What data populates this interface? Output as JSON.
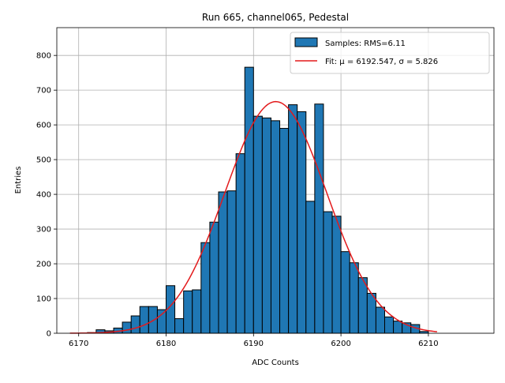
{
  "chart_data": {
    "type": "bar",
    "title": "Run 665, channel065, Pedestal",
    "xlabel": "ADC Counts",
    "ylabel": "Entries",
    "xlim": [
      6167.5,
      6217.5
    ],
    "ylim": [
      0,
      880
    ],
    "grid": true,
    "legend_position": "top-right",
    "x_ticks": [
      6170,
      6180,
      6190,
      6200,
      6210
    ],
    "y_ticks": [
      0,
      100,
      200,
      300,
      400,
      500,
      600,
      700,
      800
    ],
    "histogram": {
      "name": "Samples: RMS=6.11",
      "color": "#1f77b4",
      "edgecolor": "#000000",
      "bin_start": 6171,
      "bin_width": 1,
      "counts": [
        2,
        10,
        7,
        15,
        32,
        50,
        77,
        77,
        68,
        137,
        42,
        122,
        125,
        261,
        320,
        407,
        410,
        517,
        766,
        625,
        620,
        612,
        590,
        658,
        638,
        380,
        660,
        350,
        337,
        235,
        203,
        160,
        115,
        75,
        47,
        35,
        30,
        25,
        5
      ]
    },
    "fit": {
      "name": "Fit: μ = 6192.547, σ = 5.826",
      "color": "#e31a1c",
      "mu": 6192.547,
      "sigma": 5.826,
      "amplitude": 667,
      "x_range": [
        6169,
        6211
      ]
    }
  }
}
